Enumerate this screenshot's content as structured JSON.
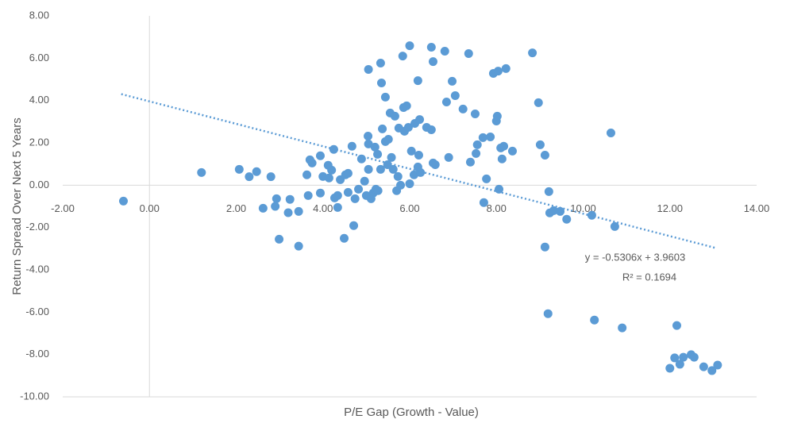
{
  "chart_data": {
    "type": "scatter",
    "x_label": "P/E Gap (Growth - Value)",
    "y_label": "Return Spread Over Next 5 Years",
    "color": "#5b9bd5",
    "grid": false,
    "xlim": [
      -2,
      14
    ],
    "ylim": [
      -10,
      8
    ],
    "xticks": [
      {
        "value": -2,
        "label": "-2.00"
      },
      {
        "value": 0,
        "label": "0.00"
      },
      {
        "value": 2,
        "label": "2.00"
      },
      {
        "value": 4,
        "label": "4.00"
      },
      {
        "value": 6,
        "label": "6.00"
      },
      {
        "value": 8,
        "label": "8.00"
      },
      {
        "value": 10,
        "label": "10.00"
      },
      {
        "value": 12,
        "label": "12.00"
      },
      {
        "value": 14,
        "label": "14.00"
      }
    ],
    "yticks": [
      {
        "value": -10,
        "label": "-10.00"
      },
      {
        "value": -8,
        "label": "-8.00"
      },
      {
        "value": -6,
        "label": "-6.00"
      },
      {
        "value": -4,
        "label": "-4.00"
      },
      {
        "value": -2,
        "label": "-2.00"
      },
      {
        "value": 0,
        "label": "0.00"
      },
      {
        "value": 2,
        "label": "2.00"
      },
      {
        "value": 4,
        "label": "4.00"
      },
      {
        "value": 6,
        "label": "6.00"
      },
      {
        "value": 8,
        "label": "8.00"
      }
    ],
    "trendline": {
      "slope": -0.5306,
      "intercept": 3.9603,
      "xlim": [
        -0.65,
        13.05
      ],
      "equation": "y = -0.5306x + 3.9603",
      "r_squared": "R² = 0.1694"
    },
    "x": [
      -0.6,
      1.2,
      2.07,
      2.3,
      2.47,
      2.8,
      2.62,
      2.93,
      2.9,
      2.99,
      3.24,
      3.2,
      3.44,
      3.44,
      3.63,
      3.66,
      3.7,
      3.75,
      3.94,
      3.94,
      4.0,
      4.12,
      4.2,
      4.14,
      4.25,
      4.27,
      4.34,
      4.34,
      4.4,
      4.49,
      4.52,
      4.58,
      4.58,
      4.67,
      4.71,
      4.74,
      4.82,
      4.89,
      4.96,
      5.0,
      5.05,
      5.04,
      5.05,
      5.05,
      5.11,
      5.16,
      5.2,
      5.22,
      5.26,
      5.27,
      5.33,
      5.35,
      5.33,
      5.37,
      5.44,
      5.44,
      5.49,
      5.51,
      5.55,
      5.58,
      5.62,
      5.66,
      5.7,
      5.73,
      5.75,
      5.79,
      5.84,
      5.86,
      5.88,
      5.93,
      5.97,
      6.0,
      6.0,
      6.04,
      6.1,
      6.12,
      6.19,
      6.19,
      6.23,
      6.21,
      6.25,
      6.39,
      6.5,
      6.54,
      6.54,
      6.59,
      6.5,
      6.81,
      6.85,
      6.9,
      6.98,
      7.05,
      7.23,
      7.36,
      7.4,
      7.51,
      7.53,
      7.56,
      7.69,
      7.71,
      7.77,
      7.86,
      7.93,
      8.04,
      8.0,
      8.02,
      8.06,
      8.1,
      8.13,
      8.17,
      8.22,
      8.37,
      8.83,
      8.97,
      9.01,
      9.12,
      9.12,
      9.19,
      9.21,
      9.23,
      9.32,
      9.47,
      9.62,
      10.2,
      10.26,
      10.64,
      10.73,
      10.9,
      12.0,
      12.11,
      12.16,
      12.23,
      12.31,
      12.49,
      12.56,
      12.78,
      12.97,
      13.1
    ],
    "values": [
      -0.75,
      0.6,
      0.75,
      0.4,
      0.64,
      0.4,
      -1.09,
      -0.64,
      -1.0,
      -2.55,
      -0.67,
      -1.3,
      -1.24,
      -2.88,
      0.49,
      -0.49,
      1.2,
      1.05,
      1.39,
      -0.37,
      0.41,
      0.94,
      0.71,
      0.34,
      1.69,
      -0.6,
      -1.05,
      -0.49,
      0.26,
      -2.51,
      0.49,
      0.56,
      -0.34,
      1.84,
      -1.91,
      -0.64,
      -0.19,
      1.24,
      0.19,
      -0.49,
      1.95,
      2.32,
      5.47,
      0.75,
      -0.64,
      -0.37,
      1.8,
      -0.19,
      1.46,
      -0.26,
      5.77,
      4.83,
      0.75,
      2.66,
      4.16,
      2.06,
      0.97,
      2.17,
      3.41,
      1.31,
      0.75,
      3.26,
      -0.26,
      0.41,
      2.7,
      0.0,
      6.1,
      3.67,
      2.55,
      3.75,
      2.73,
      6.59,
      0.07,
      1.61,
      0.49,
      2.92,
      4.94,
      0.86,
      3.1,
      1.42,
      0.6,
      2.73,
      6.52,
      5.84,
      1.05,
      0.97,
      2.62,
      6.33,
      3.93,
      1.31,
      4.91,
      4.23,
      3.6,
      6.22,
      1.09,
      3.37,
      1.5,
      1.91,
      2.25,
      -0.82,
      0.3,
      2.28,
      5.28,
      5.39,
      3.03,
      3.26,
      -0.19,
      1.76,
      1.24,
      1.84,
      5.51,
      1.61,
      6.25,
      3.9,
      1.91,
      1.42,
      -2.92,
      -6.07,
      -0.3,
      -1.31,
      -1.2,
      -1.24,
      -1.61,
      -1.42,
      -6.37,
      2.47,
      -1.95,
      -6.74,
      -8.65,
      -8.16,
      -6.63,
      -8.46,
      -8.13,
      -8.01,
      -8.13,
      -8.58,
      -8.76,
      -8.5
    ]
  }
}
